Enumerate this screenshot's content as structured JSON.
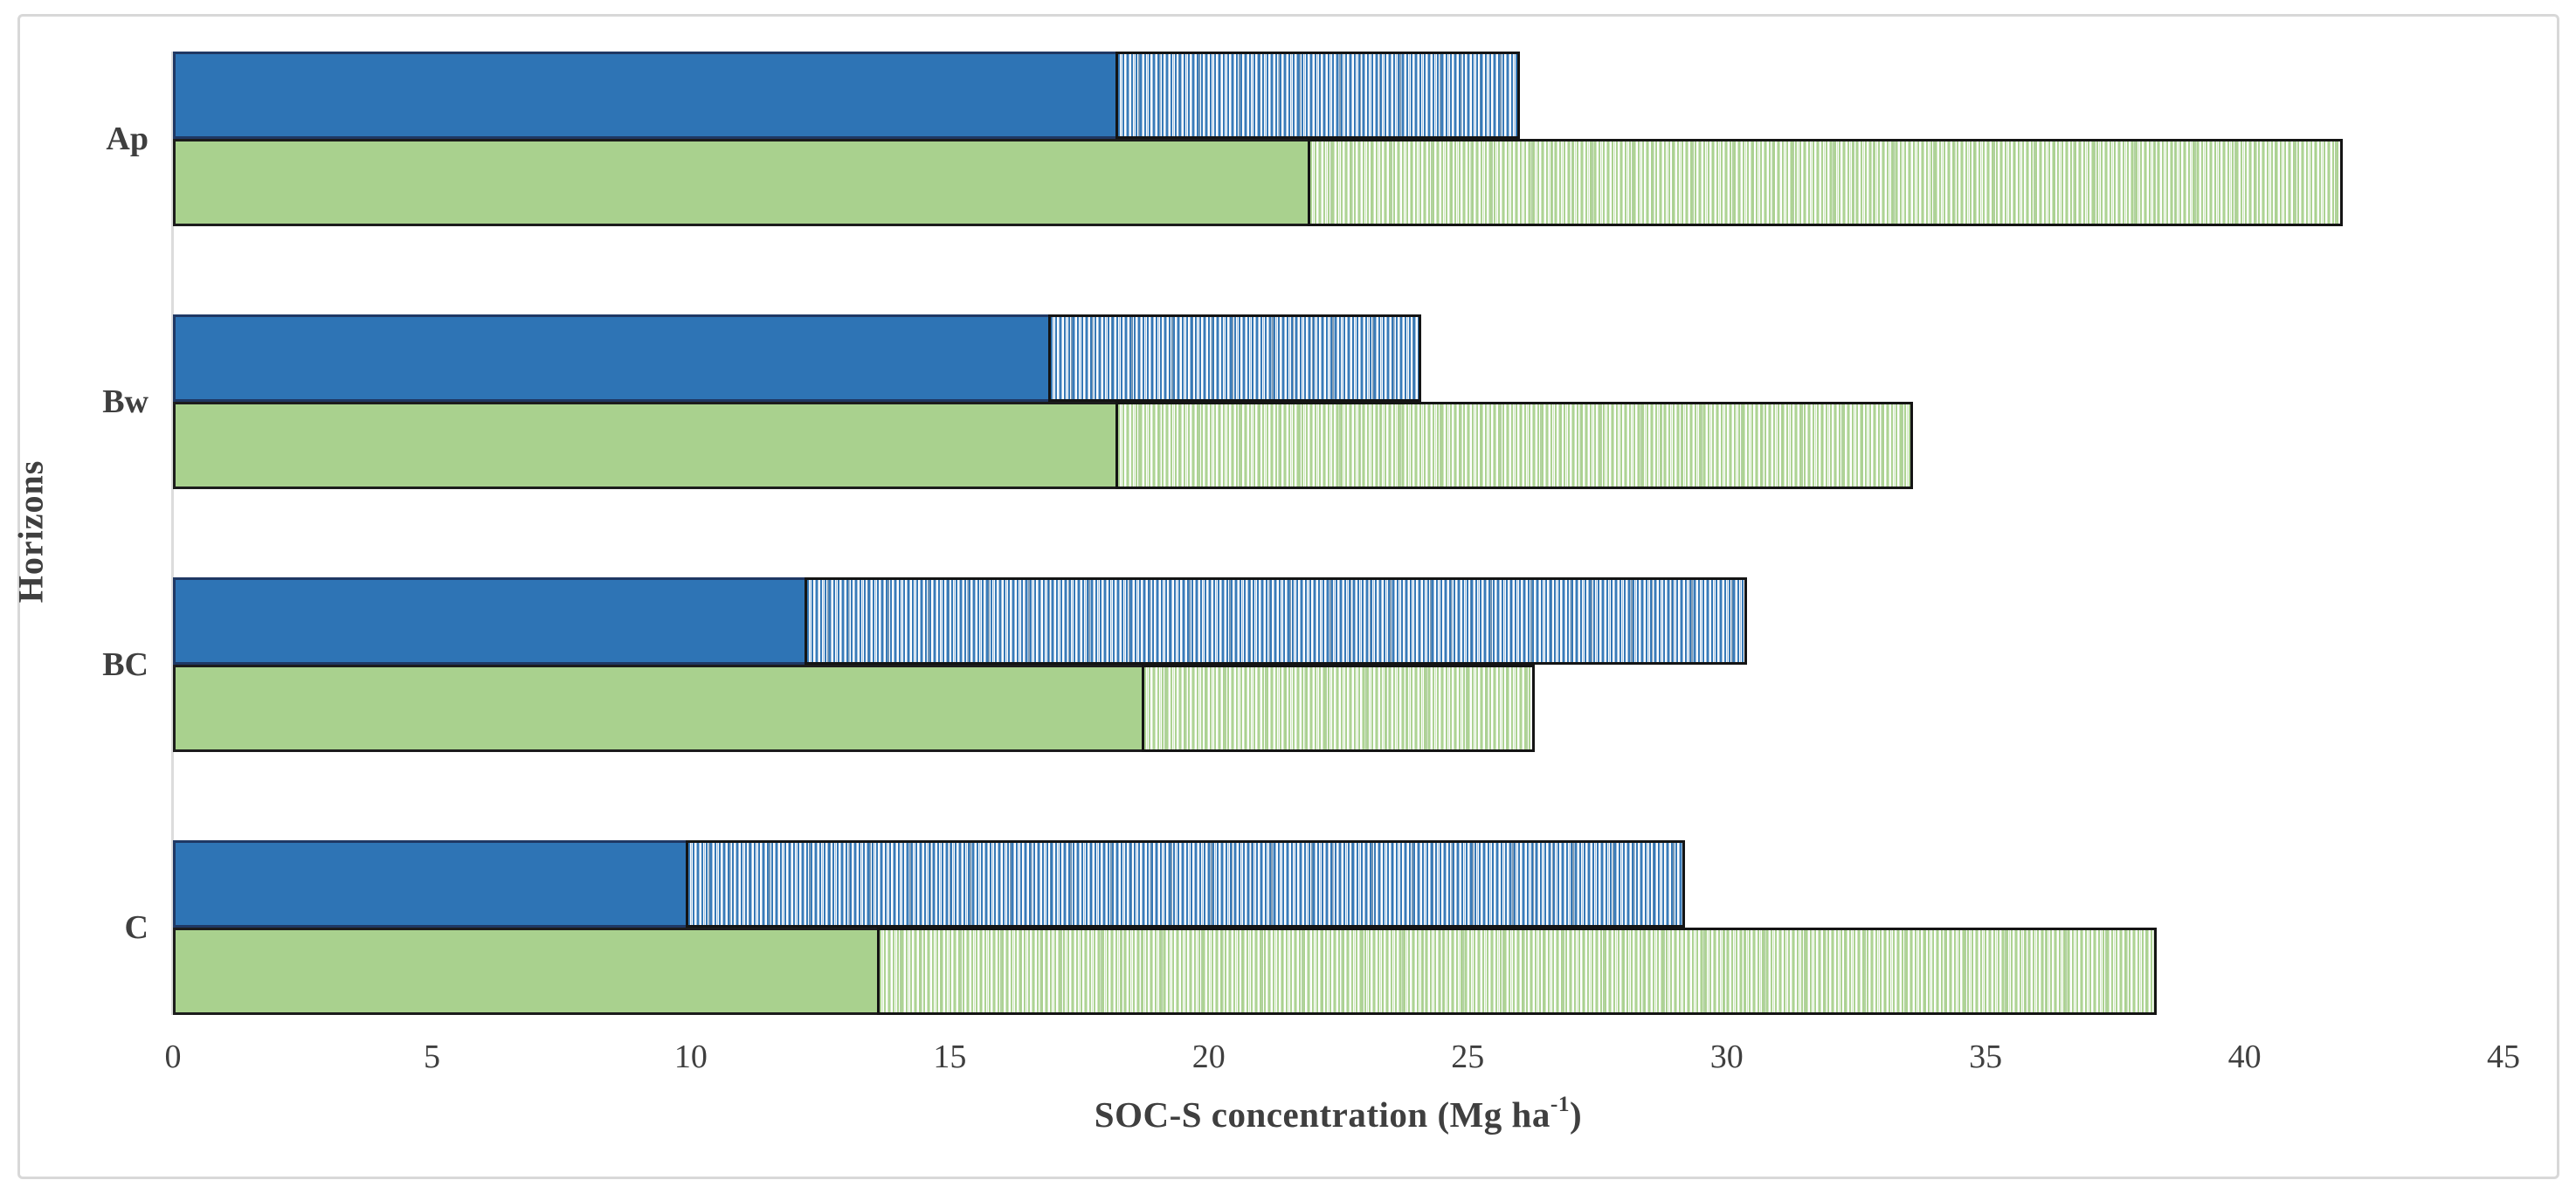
{
  "figure": {
    "y_axis_title": "Horizons",
    "x_axis_title_prefix": "SOC-S concentration (Mg ha",
    "x_axis_title_sup": "-1",
    "x_axis_title_suffix": ")"
  },
  "chart_data": {
    "type": "bar",
    "orientation": "horizontal-stacked",
    "title": "",
    "xlabel": "SOC-S concentration (Mg ha⁻¹)",
    "ylabel": "Horizons",
    "categories": [
      "Ap",
      "Bw",
      "BC",
      "C"
    ],
    "series": [
      {
        "name": "blue-solid",
        "color": "#2E74B5",
        "pattern": "solid",
        "values": [
          18.2,
          16.9,
          12.2,
          9.9
        ]
      },
      {
        "name": "blue-pattern",
        "color": "#2E74B5",
        "pattern": "vertical-stripes",
        "values": [
          7.8,
          7.2,
          18.2,
          19.3
        ]
      },
      {
        "name": "green-solid",
        "color": "#A9D18E",
        "pattern": "solid",
        "values": [
          21.9,
          18.2,
          18.7,
          13.6
        ]
      },
      {
        "name": "green-pattern",
        "color": "#A9D18E",
        "pattern": "vertical-stripes",
        "values": [
          20.0,
          15.4,
          7.6,
          24.7
        ]
      }
    ],
    "bar_totals": {
      "blue": [
        26.0,
        24.1,
        30.4,
        29.2
      ],
      "green": [
        41.9,
        33.6,
        26.3,
        38.3
      ]
    },
    "xlim": [
      0,
      45
    ],
    "xticks": [
      0,
      5,
      10,
      15,
      20,
      25,
      30,
      35,
      40,
      45
    ],
    "grid": false,
    "legend": "none",
    "colors": {
      "blue_fill": "#2E74B5",
      "blue_border": "#1F3864",
      "green_fill": "#A9D18E",
      "green_border": "#1C1C1C",
      "pattern_border": "#141414",
      "frame_border": "#D8D8D8",
      "axis_line": "#DCDCDC",
      "text": "#3F3F3F"
    }
  }
}
